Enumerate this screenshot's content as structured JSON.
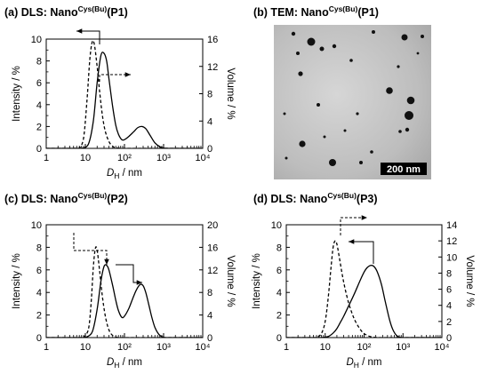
{
  "chart_data": [
    {
      "panel": "a",
      "type": "line",
      "title_prefix": "(a) DLS: Nano",
      "title_sup": "Cys(Bu)",
      "title_suffix": "(P1)",
      "xlabel_main": "D",
      "xlabel_sub": "H",
      "xlabel_unit": " / nm",
      "ylabel_left": "Intensity / %",
      "ylabel_right": "Volume / %",
      "x_scale": "log",
      "xlim": [
        1,
        10000
      ],
      "x_ticks": [
        "1",
        "10",
        "10²",
        "10³",
        "10⁴"
      ],
      "ylim_left": [
        0,
        10
      ],
      "ylim_right": [
        0,
        16
      ],
      "y_ticks_left": [
        "0",
        "2",
        "4",
        "6",
        "8",
        "10"
      ],
      "y_ticks_right": [
        "0",
        "4",
        "8",
        "12",
        "16"
      ],
      "series": [
        {
          "axis": "left",
          "style": "solid",
          "x": [
            8,
            12,
            16,
            20,
            25,
            30,
            35,
            40,
            50,
            60,
            70,
            85,
            100,
            130,
            170,
            220,
            280,
            350,
            450,
            600,
            800,
            1000,
            1300
          ],
          "y": [
            0,
            0.4,
            2.5,
            6.0,
            8.5,
            8.7,
            8.0,
            6.4,
            3.8,
            2.1,
            1.3,
            0.8,
            0.8,
            1.1,
            1.5,
            1.9,
            2.0,
            1.8,
            1.2,
            0.5,
            0.15,
            0.03,
            0
          ]
        },
        {
          "axis": "right",
          "style": "dashed",
          "x": [
            7,
            9,
            11,
            13,
            15,
            17,
            20,
            23,
            27,
            32,
            40,
            50,
            60,
            80,
            100
          ],
          "y": [
            0,
            1.5,
            7.0,
            13.0,
            15.6,
            15.2,
            12.0,
            8.5,
            5.0,
            2.6,
            1.0,
            0.3,
            0.1,
            0,
            0
          ]
        }
      ]
    },
    {
      "panel": "c",
      "type": "line",
      "title_prefix": "(c) DLS: Nano",
      "title_sup": "Cys(Bu)",
      "title_suffix": "(P2)",
      "xlabel_main": "D",
      "xlabel_sub": "H",
      "xlabel_unit": " / nm",
      "ylabel_left": "Intensity / %",
      "ylabel_right": "Volume / %",
      "x_scale": "log",
      "xlim": [
        1,
        10000
      ],
      "x_ticks": [
        "1",
        "10",
        "10²",
        "10³",
        "10⁴"
      ],
      "ylim_left": [
        0,
        10
      ],
      "ylim_right": [
        0,
        20
      ],
      "y_ticks_left": [
        "0",
        "2",
        "4",
        "6",
        "8",
        "10"
      ],
      "y_ticks_right": [
        "0",
        "4",
        "8",
        "12",
        "16",
        "20"
      ],
      "series": [
        {
          "axis": "left",
          "style": "solid",
          "x": [
            10,
            15,
            20,
            25,
            30,
            35,
            40,
            50,
            60,
            70,
            85,
            100,
            130,
            160,
            200,
            250,
            300,
            350,
            420,
            500,
            600,
            750,
            900,
            1100
          ],
          "y": [
            0,
            0.5,
            2.5,
            5.0,
            6.3,
            6.4,
            6.0,
            4.6,
            3.3,
            2.4,
            1.8,
            1.9,
            2.6,
            3.4,
            4.2,
            4.7,
            4.6,
            4.0,
            2.9,
            1.8,
            0.9,
            0.3,
            0.08,
            0
          ]
        },
        {
          "axis": "right",
          "style": "dashed",
          "x": [
            9,
            12,
            14,
            16,
            18,
            20,
            23,
            27,
            32,
            38,
            45,
            55,
            70,
            90
          ],
          "y": [
            0,
            1.5,
            6.0,
            12.5,
            15.8,
            15.5,
            12.0,
            7.5,
            4.0,
            1.8,
            0.7,
            0.2,
            0,
            0
          ]
        }
      ]
    },
    {
      "panel": "d",
      "type": "line",
      "title_prefix": "(d) DLS: Nano",
      "title_sup": "Cys(Bu)",
      "title_suffix": "(P3)",
      "xlabel_main": "D",
      "xlabel_sub": "H",
      "xlabel_unit": " / nm",
      "ylabel_left": "Intensity / %",
      "ylabel_right": "Volume / %",
      "x_scale": "log",
      "xlim": [
        1,
        10000
      ],
      "x_ticks": [
        "1",
        "10",
        "10²",
        "10³",
        "10⁴"
      ],
      "ylim_left": [
        0,
        10
      ],
      "ylim_right": [
        0,
        14
      ],
      "y_ticks_left": [
        "0",
        "2",
        "4",
        "6",
        "8",
        "10"
      ],
      "y_ticks_right": [
        "0",
        "2",
        "4",
        "6",
        "8",
        "10",
        "12",
        "14"
      ],
      "series": [
        {
          "axis": "left",
          "style": "solid",
          "x": [
            8,
            12,
            16,
            20,
            25,
            30,
            40,
            50,
            60,
            80,
            100,
            120,
            150,
            180,
            220,
            280,
            350,
            450,
            550,
            700,
            900
          ],
          "y": [
            0,
            0.1,
            0.4,
            0.8,
            1.4,
            1.9,
            2.8,
            3.5,
            4.1,
            5.1,
            5.8,
            6.2,
            6.4,
            6.3,
            5.8,
            4.7,
            3.2,
            1.6,
            0.7,
            0.15,
            0
          ]
        },
        {
          "axis": "right",
          "style": "dashed",
          "x": [
            6,
            8,
            10,
            12,
            14,
            16,
            18,
            20,
            23,
            27,
            32,
            40,
            50,
            60,
            80,
            100,
            130,
            170,
            220
          ],
          "y": [
            0,
            0.5,
            2.0,
            5.0,
            8.5,
            11.2,
            12.0,
            11.6,
            10.0,
            8.0,
            6.2,
            4.3,
            2.9,
            2.0,
            1.0,
            0.5,
            0.2,
            0.05,
            0
          ]
        }
      ]
    }
  ],
  "tem_panel": {
    "title_prefix": "(b) TEM: Nano",
    "title_sup": "Cys(Bu)",
    "title_suffix": "(P1)",
    "scale_bar_label": "200 nm"
  }
}
